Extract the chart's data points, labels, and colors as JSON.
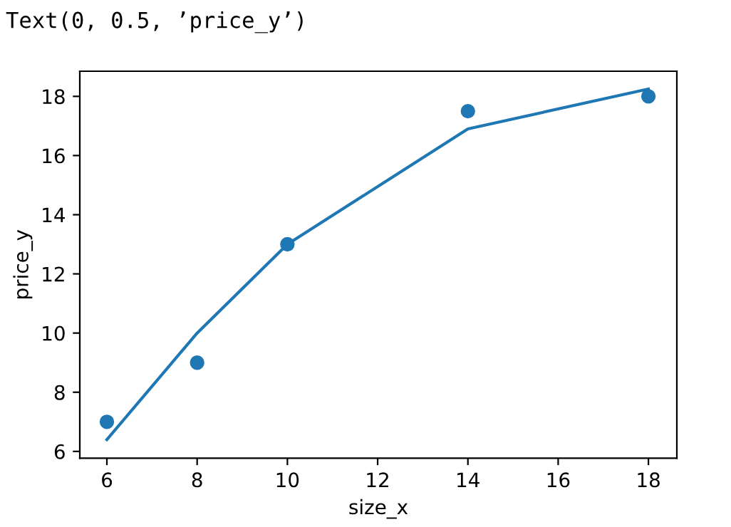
{
  "chart_data": {
    "type": "scatter",
    "xlabel": "size_x",
    "ylabel": "price_y",
    "annotations": [
      "Text(0, 0.5, ’price_y’)"
    ],
    "xlim": [
      5.4,
      18.63
    ],
    "ylim": [
      5.77,
      18.85
    ],
    "xticks": [
      6,
      8,
      10,
      12,
      14,
      16,
      18
    ],
    "yticks": [
      6,
      8,
      10,
      12,
      14,
      16,
      18
    ],
    "grid": false,
    "series": [
      {
        "marker": "circle",
        "color": "#1f77b4",
        "x": [
          6,
          8,
          10,
          14,
          18
        ],
        "values": [
          7,
          9,
          13,
          17.5,
          18
        ]
      },
      {
        "type": "line",
        "color": "#1f77b4",
        "marker": "none",
        "line_style": "solid",
        "x": [
          6,
          8,
          10,
          14,
          18
        ],
        "values": [
          6.4,
          10.0,
          13.0,
          16.9,
          18.25
        ]
      }
    ]
  }
}
